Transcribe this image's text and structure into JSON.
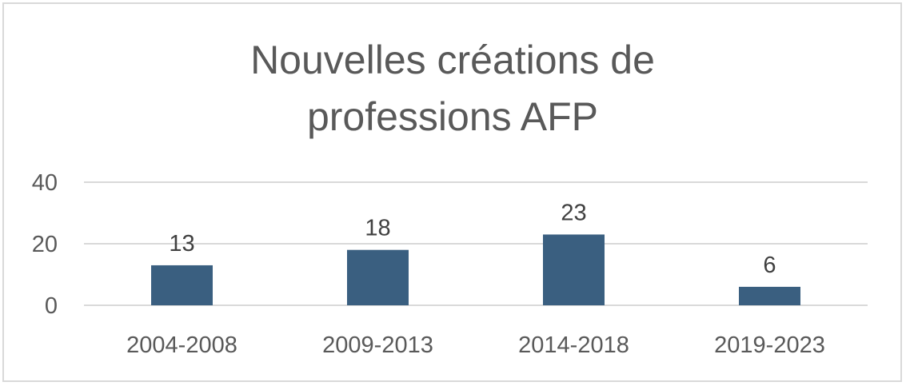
{
  "chart_data": {
    "type": "bar",
    "title_lines": [
      "Nouvelles créations de",
      "professions AFP"
    ],
    "categories": [
      "2004-2008",
      "2009-2013",
      "2014-2018",
      "2019-2023"
    ],
    "values": [
      13,
      18,
      23,
      6
    ],
    "data_labels": [
      "13",
      "18",
      "23",
      "6"
    ],
    "ylim": [
      0,
      40
    ],
    "yticks": [
      0,
      20,
      40
    ],
    "grid": true,
    "legend": "none",
    "bar_color": "#3a5f80",
    "grid_color": "#d9d9d9"
  }
}
